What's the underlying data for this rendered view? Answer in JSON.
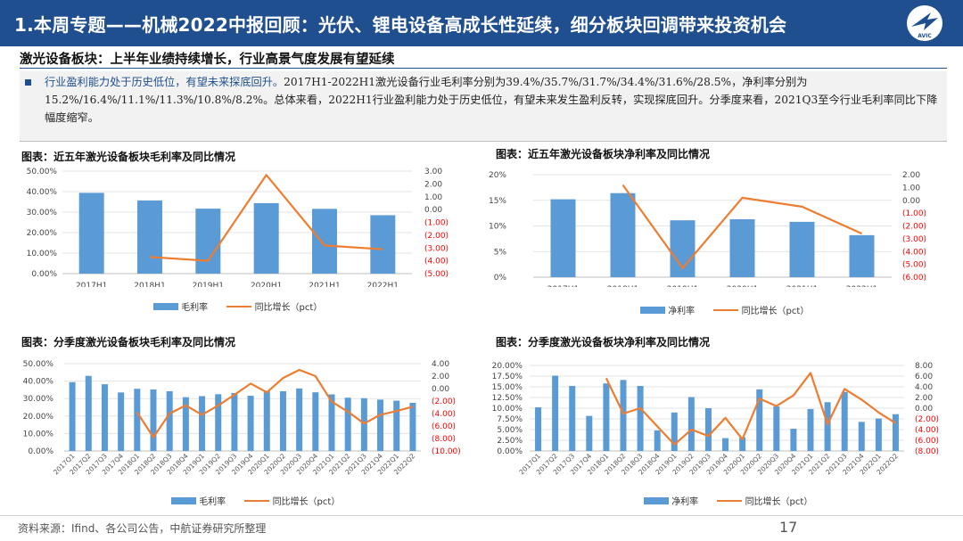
{
  "header": {
    "title": "1.本周专题——机械2022中报回顾：光伏、锂电设备高成长性延续，细分板块回调带来投资机会",
    "logo_text": "AVIC"
  },
  "section": {
    "subtitle": "激光设备板块：上半年业绩持续增长，行业高景气度发展有望延续"
  },
  "bullet": {
    "highlight": "行业盈利能力处于历史低位，有望未来探底回升。",
    "body": "2017H1-2022H1激光设备行业毛利率分别为39.4%/35.7%/31.7%/34.4%/31.6%/28.5%，净利率分别为15.2%/16.4%/11.1%/11.3%/10.8%/8.2%。总体来看，2022H1行业盈利能力处于历史低位，有望未来发生盈利反转，实现探底回升。分季度来看，2021Q3至今行业毛利率同比下降幅度缩窄。"
  },
  "colors": {
    "bar": "#5b9bd5",
    "line": "#ed7d31",
    "neg": "#ff0000",
    "brand": "#1f4f8f"
  },
  "chart_data": [
    {
      "type": "bar",
      "title": "图表：近五年激光设备板块毛利率及同比情况",
      "categories": [
        "2017H1",
        "2018H1",
        "2019H1",
        "2020H1",
        "2021H1",
        "2022H1"
      ],
      "series": [
        {
          "name": "毛利率",
          "type": "bar",
          "axis": "left",
          "values": [
            39.4,
            35.7,
            31.7,
            34.4,
            31.6,
            28.5
          ]
        },
        {
          "name": "同比增长（pct）",
          "type": "line",
          "axis": "right",
          "values": [
            null,
            -3.7,
            -4.0,
            2.7,
            -2.8,
            -3.1
          ]
        }
      ],
      "left_axis": {
        "min": 0,
        "max": 50,
        "step": 10,
        "ticks": [
          "0.00%",
          "10.00%",
          "20.00%",
          "30.00%",
          "40.00%",
          "50.00%"
        ]
      },
      "right_axis": {
        "min": -5,
        "max": 3,
        "step": 1,
        "ticks": [
          "(5.00)",
          "(4.00)",
          "(3.00)",
          "(2.00)",
          "(1.00)",
          "0.00",
          "1.00",
          "2.00",
          "3.00"
        ]
      },
      "legend": [
        "毛利率",
        "同比增长（pct）"
      ]
    },
    {
      "type": "bar",
      "title": "图表：近五年激光设备板块净利率及同比情况",
      "categories": [
        "2017H1",
        "2018H1",
        "2019H1",
        "2020H1",
        "2021H1",
        "2022H1"
      ],
      "series": [
        {
          "name": "净利率",
          "type": "bar",
          "axis": "left",
          "values": [
            15.2,
            16.4,
            11.1,
            11.3,
            10.8,
            8.2
          ]
        },
        {
          "name": "同比增长（pct）",
          "type": "line",
          "axis": "right",
          "values": [
            null,
            1.2,
            -5.3,
            0.2,
            -0.5,
            -2.6
          ]
        }
      ],
      "left_axis": {
        "min": 0,
        "max": 20,
        "step": 5,
        "ticks": [
          "0%",
          "5%",
          "10%",
          "15%",
          "20%"
        ]
      },
      "right_axis": {
        "min": -6,
        "max": 2,
        "step": 1,
        "ticks": [
          "(6.00)",
          "(5.00)",
          "(4.00)",
          "(3.00)",
          "(2.00)",
          "(1.00)",
          "0.00",
          "1.00",
          "2.00"
        ]
      },
      "legend": [
        "净利率",
        "同比增长（pct）"
      ]
    },
    {
      "type": "bar",
      "title": "图表：分季度激光设备板块毛利率及同比情况",
      "categories": [
        "2017Q1",
        "2017Q2",
        "2017Q3",
        "2017Q4",
        "2018Q1",
        "2018Q2",
        "2018Q3",
        "2018Q4",
        "2019Q1",
        "2019Q2",
        "2019Q3",
        "2019Q4",
        "2020Q1",
        "2020Q2",
        "2020Q3",
        "2020Q4",
        "2021Q1",
        "2021Q2",
        "2021Q3",
        "2021Q4",
        "2022Q1",
        "2022Q2"
      ],
      "series": [
        {
          "name": "毛利率",
          "type": "bar",
          "axis": "left",
          "values": [
            39.4,
            43.0,
            38.2,
            33.5,
            35.6,
            35.2,
            34.2,
            30.8,
            31.4,
            32.5,
            33.2,
            31.6,
            34.5,
            34.2,
            35.8,
            33.6,
            32.4,
            30.5,
            30.2,
            29.4,
            28.8,
            27.6
          ]
        },
        {
          "name": "同比增长（pct）",
          "type": "line",
          "axis": "right",
          "values": [
            null,
            null,
            null,
            null,
            -3.8,
            -7.8,
            -4.0,
            -2.7,
            -4.2,
            -2.7,
            -1.0,
            0.8,
            -0.6,
            1.7,
            3.0,
            2.0,
            -2.1,
            -3.7,
            -5.6,
            -4.2,
            -3.6,
            -2.9
          ]
        }
      ],
      "left_axis": {
        "min": 0,
        "max": 50,
        "step": 10,
        "ticks": [
          "0.00%",
          "10.00%",
          "20.00%",
          "30.00%",
          "40.00%",
          "50.00%"
        ]
      },
      "right_axis": {
        "min": -10,
        "max": 4,
        "step": 2,
        "ticks": [
          "(10.00)",
          "(8.00)",
          "(6.00)",
          "(4.00)",
          "(2.00)",
          "0.00",
          "2.00",
          "4.00"
        ]
      },
      "legend": [
        "毛利率",
        "同比增长（pct）"
      ]
    },
    {
      "type": "bar",
      "title": "图表：分季度激光设备板块净利率及同比情况",
      "categories": [
        "2017Q1",
        "2017Q2",
        "2017Q3",
        "2017Q4",
        "2018Q1",
        "2018Q2",
        "2018Q3",
        "2018Q4",
        "2019Q1",
        "2019Q2",
        "2019Q3",
        "2019Q4",
        "2020Q1",
        "2020Q2",
        "2020Q3",
        "2020Q4",
        "2021Q1",
        "2021Q2",
        "2021Q3",
        "2021Q4",
        "2022Q1",
        "2022Q2"
      ],
      "series": [
        {
          "name": "净利率",
          "type": "bar",
          "axis": "left",
          "values": [
            10.2,
            17.6,
            15.2,
            8.2,
            15.8,
            16.6,
            15.2,
            4.8,
            9.0,
            12.6,
            10.0,
            3.0,
            3.2,
            14.4,
            10.4,
            5.2,
            9.8,
            11.4,
            13.8,
            6.8,
            7.6,
            8.6
          ]
        },
        {
          "name": "同比增长（pct）",
          "type": "line",
          "axis": "right",
          "values": [
            null,
            null,
            null,
            null,
            5.6,
            -1.0,
            0.0,
            -3.4,
            -6.8,
            -4.0,
            -5.2,
            -1.8,
            -5.8,
            1.8,
            0.4,
            2.4,
            6.6,
            -3.0,
            3.6,
            1.6,
            -0.8,
            -2.8
          ]
        }
      ],
      "left_axis": {
        "min": 0,
        "max": 20,
        "step": 2.5,
        "ticks": [
          "0.00%",
          "2.50%",
          "5.00%",
          "7.50%",
          "10.00%",
          "12.50%",
          "15.00%",
          "17.50%",
          "20.00%"
        ]
      },
      "right_axis": {
        "min": -8,
        "max": 8,
        "step": 2,
        "ticks": [
          "(8.00)",
          "(6.00)",
          "(4.00)",
          "(2.00)",
          "0.00",
          "2.00",
          "4.00",
          "6.00",
          "8.00"
        ]
      },
      "legend": [
        "净利率",
        "同比增长（pct）"
      ]
    }
  ],
  "footer": {
    "source": "资料来源：Ifind、各公司公告，中航证券研究所整理",
    "page": "17"
  }
}
